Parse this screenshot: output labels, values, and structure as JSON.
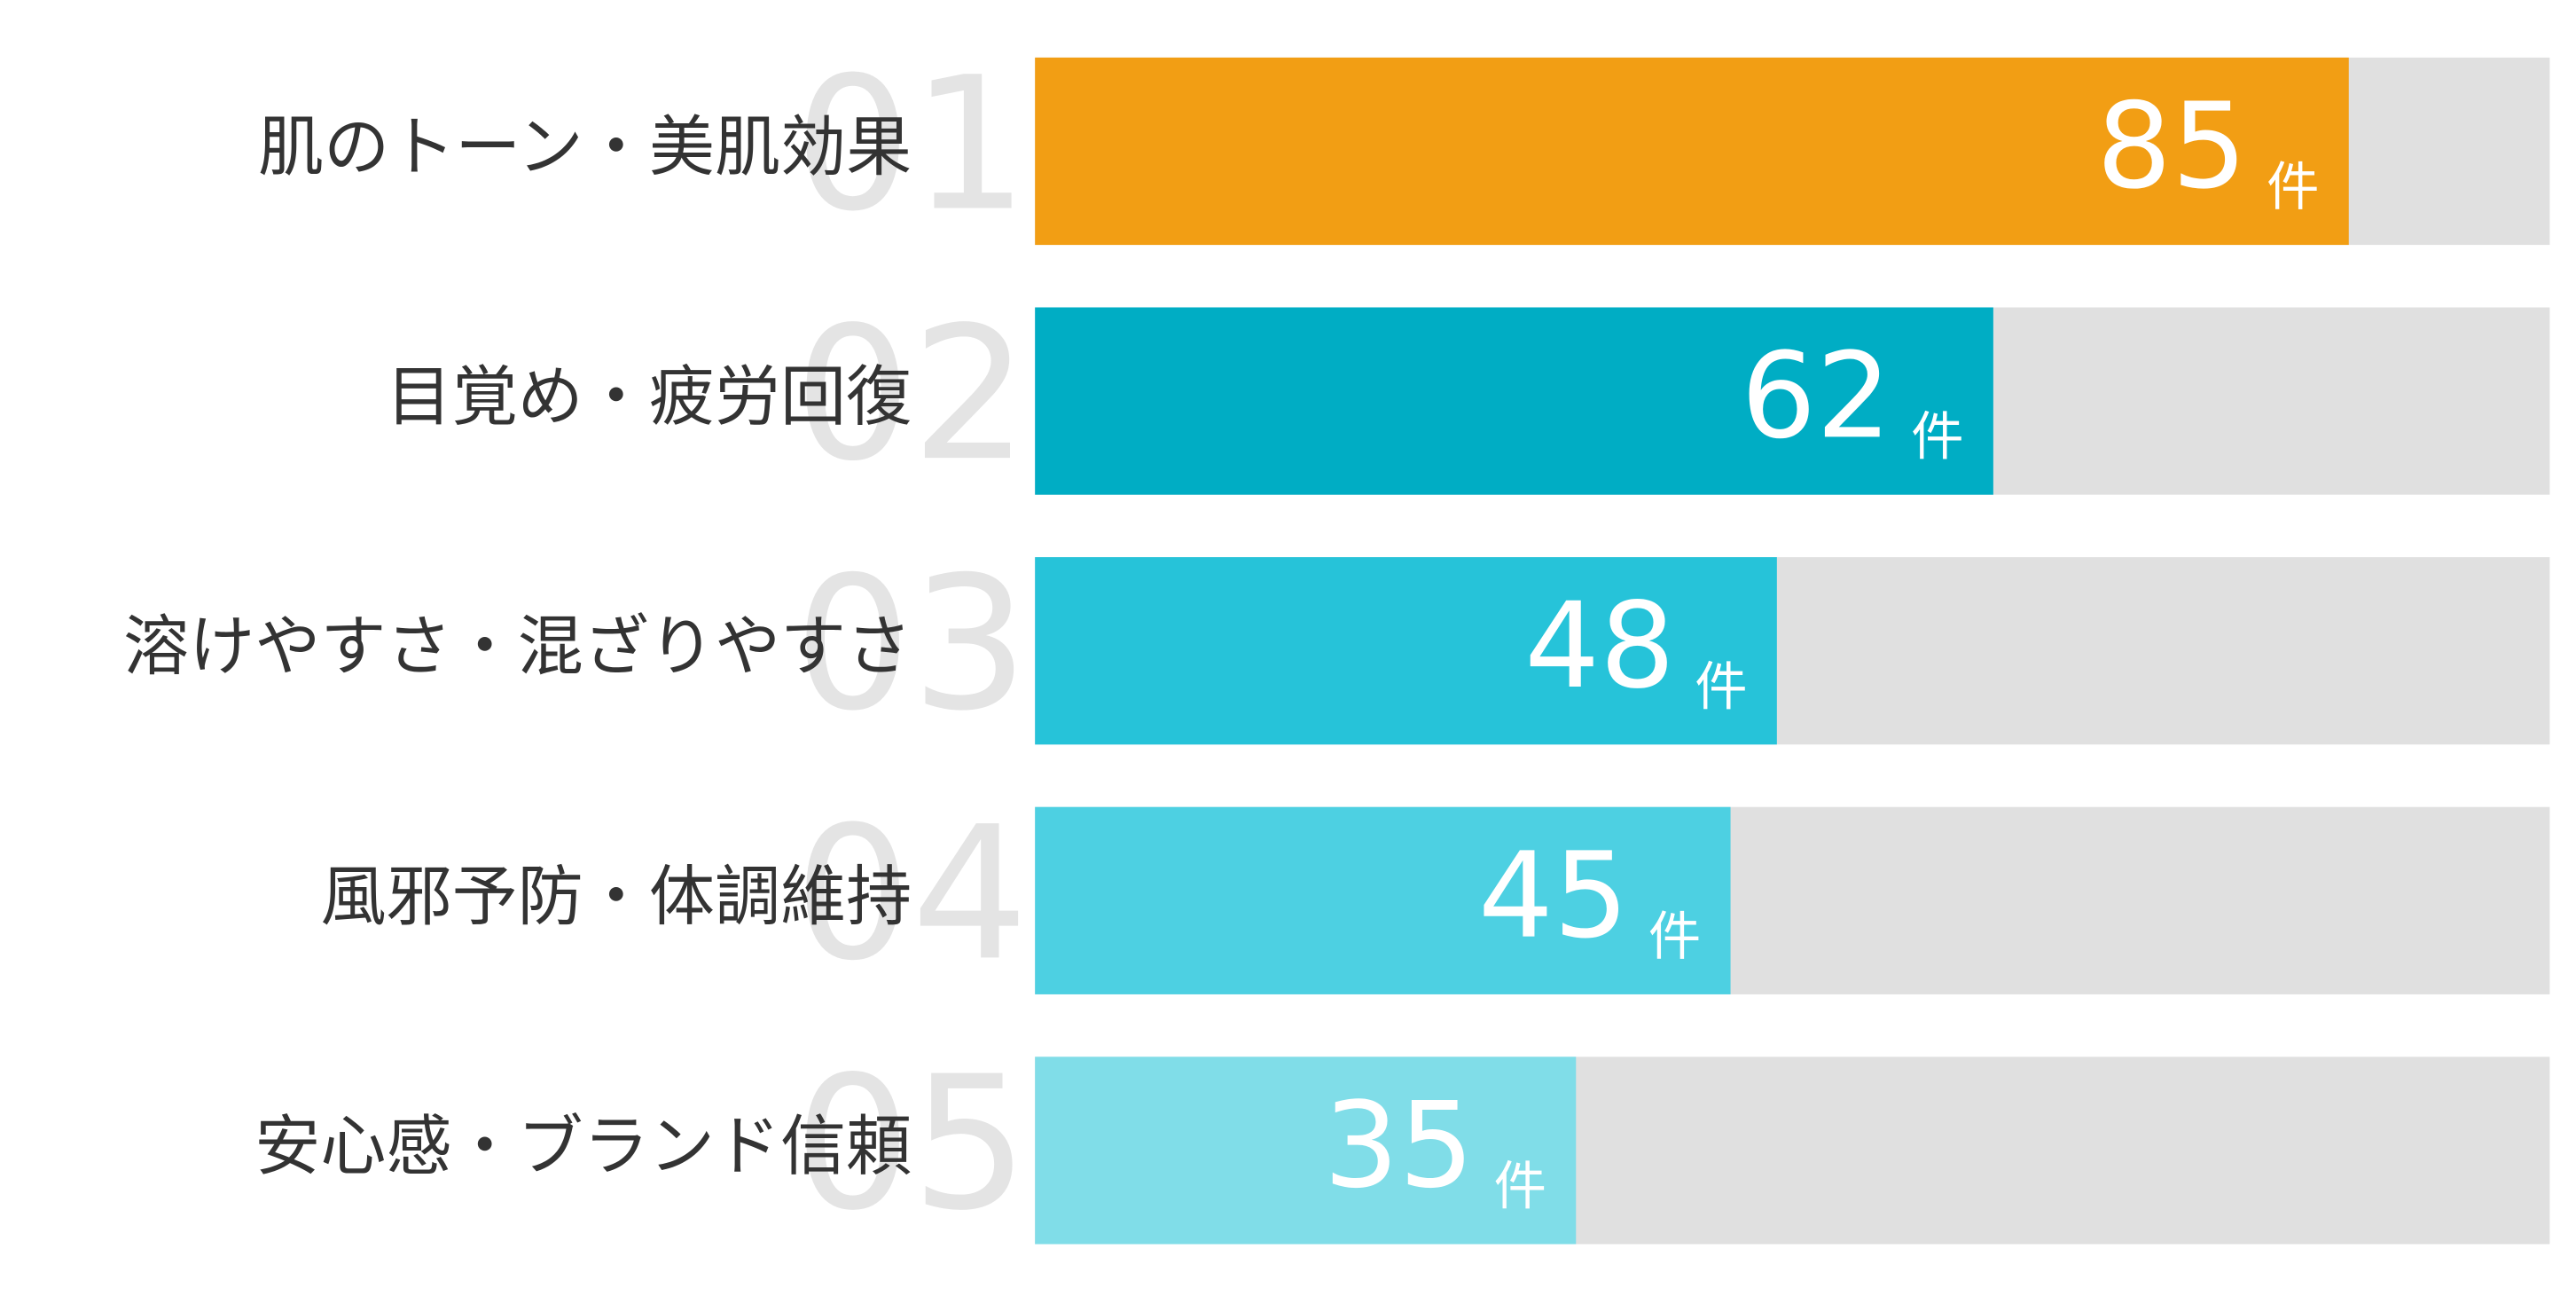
{
  "chart_data": {
    "type": "bar",
    "orientation": "horizontal",
    "categories": [
      "肌のトーン・美肌効果",
      "目覚め・疲労回復",
      "溶けやすさ・混ざりやすさ",
      "風邪予防・体調維持",
      "安心感・ブランド信頼"
    ],
    "ranks": [
      "01",
      "02",
      "03",
      "04",
      "05"
    ],
    "values": [
      85,
      62,
      48,
      45,
      35
    ],
    "unit": "件",
    "colors": [
      "#f29e14",
      "#00adc4",
      "#26c3d9",
      "#4dd0e2",
      "#80dde8"
    ],
    "track_color": "#e0e0e0",
    "xlim": [
      0,
      98
    ]
  }
}
